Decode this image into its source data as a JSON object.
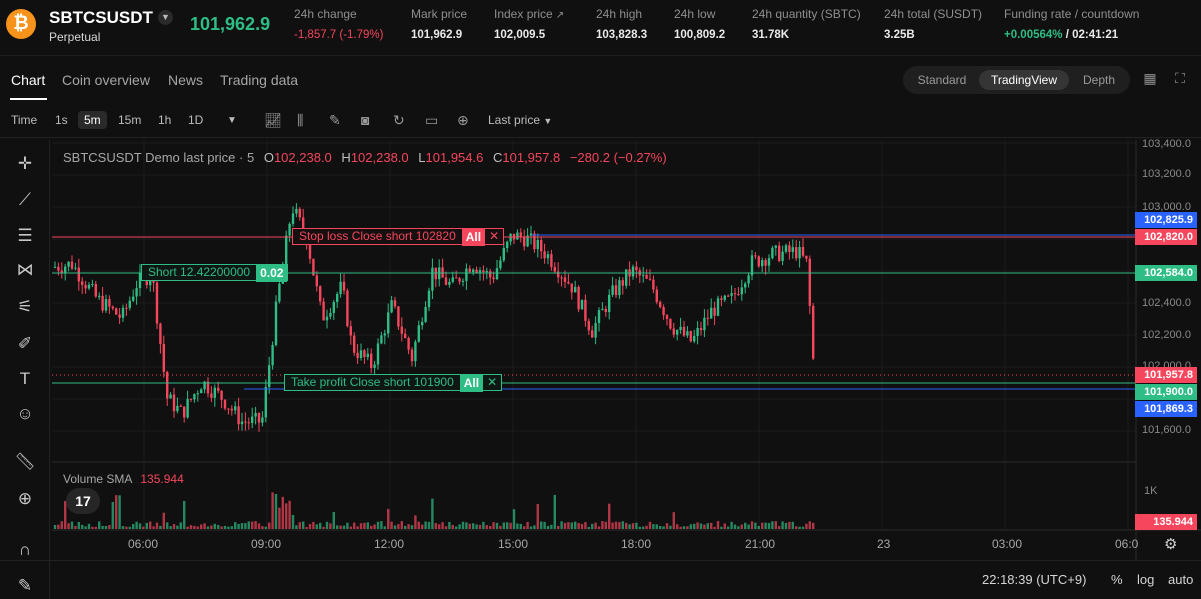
{
  "ticker": {
    "coin_icon": "bitcoin-icon",
    "symbol": "SBTCSUSDT",
    "type": "Perpetual",
    "last_price": "101,962.9",
    "stats": [
      {
        "label": "24h change",
        "value": "-1,857.7 (-1.79%)"
      },
      {
        "label": "Mark price",
        "value": "101,962.9"
      },
      {
        "label": "Index price",
        "value": "102,009.5"
      },
      {
        "label": "24h high",
        "value": "103,828.3"
      },
      {
        "label": "24h low",
        "value": "100,809.2"
      },
      {
        "label": "24h quantity (SBTC)",
        "value": "31.78K"
      },
      {
        "label": "24h total (SUSDT)",
        "value": "3.25B"
      },
      {
        "label": "Funding rate / countdown",
        "rate": "+0.00564%",
        "countdown": "/ 02:41:21"
      }
    ]
  },
  "tabs": [
    "Chart",
    "Coin overview",
    "News",
    "Trading data"
  ],
  "view_modes": [
    "Standard",
    "TradingView",
    "Depth"
  ],
  "toolbar": {
    "time_label": "Time",
    "intervals": [
      "1s",
      "5m",
      "15m",
      "1h",
      "1D"
    ],
    "active_interval": "5m",
    "price_source": "Last price"
  },
  "chart": {
    "legend": {
      "title": "SBTCSUSDT Demo last price · 5",
      "open": "102,238.0",
      "high": "102,238.0",
      "low": "101,954.6",
      "close": "101,957.8",
      "change": "−280.2 (−0.27%)"
    },
    "volume_legend": {
      "name": "Volume SMA",
      "value": "135.944"
    },
    "orders": {
      "stop_loss": {
        "text": "Stop loss Close short 102820",
        "tag": "All"
      },
      "short": {
        "text": "Short 12.42200000",
        "qty": "0.02"
      },
      "take_profit": {
        "text": "Take profit Close short 101900",
        "tag": "All"
      }
    },
    "price_axis": {
      "ticks": [
        "103,400.0",
        "103,200.0",
        "103,000.0",
        "102,400.0",
        "102,200.0",
        "102,000.0",
        "101,600.0"
      ],
      "labels": {
        "stop_top": "102,825.9",
        "stop_loss": "102,820.0",
        "entry": "102,584.0",
        "last": "101,957.8",
        "take_profit": "101,900.0",
        "tp_bottom": "101,869.3"
      },
      "volume_tick": "1K",
      "volume_value": "135.944"
    },
    "time_axis": [
      "06:00",
      "09:00",
      "12:00",
      "15:00",
      "18:00",
      "21:00",
      "23",
      "03:00",
      "06:0"
    ],
    "colors": {
      "up": "#2ebd85",
      "down": "#f6465d",
      "stop": "#f6465d",
      "entry": "#2ebd85",
      "take_profit": "#2ebd85",
      "blue": "#2962ff"
    }
  },
  "status": {
    "clock": "22:18:39 (UTC+9)",
    "percent": "%",
    "log": "log",
    "auto": "auto"
  }
}
